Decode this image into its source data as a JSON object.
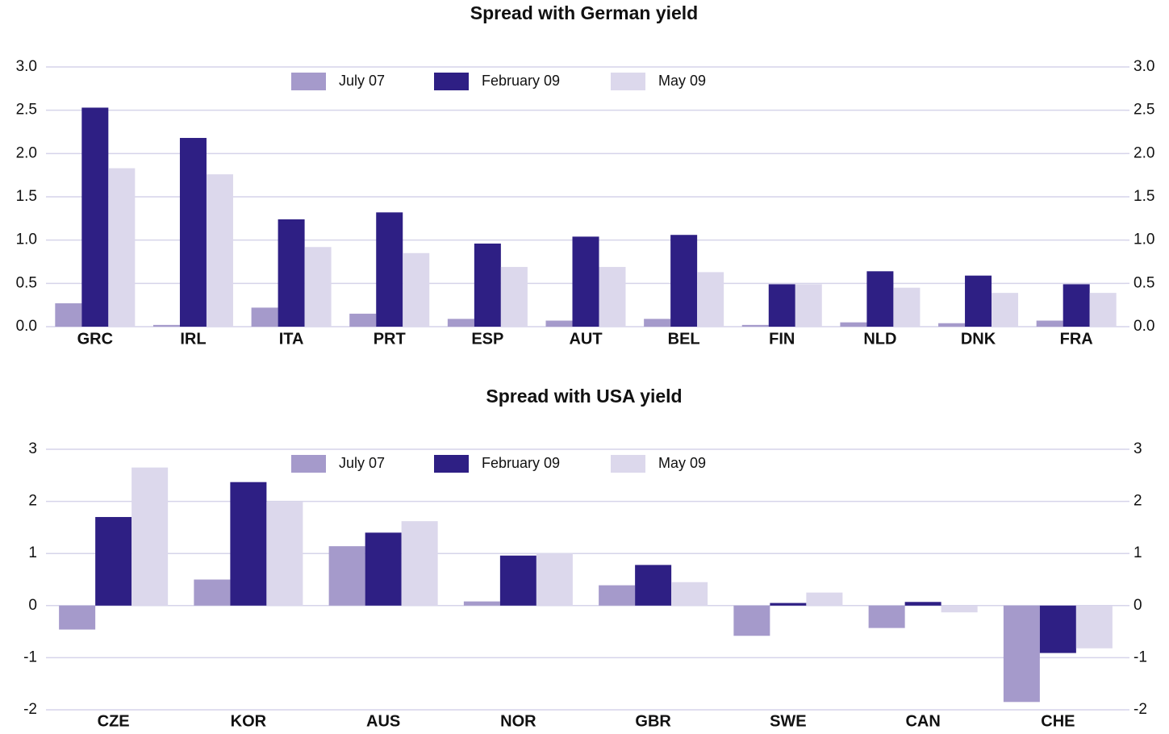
{
  "chart_data": [
    {
      "type": "bar",
      "title": "Spread with German yield",
      "categories": [
        "GRC",
        "IRL",
        "ITA",
        "PRT",
        "ESP",
        "AUT",
        "BEL",
        "FIN",
        "NLD",
        "DNK",
        "FRA"
      ],
      "series": [
        {
          "name": "July 07",
          "color": "#a59acb",
          "values": [
            0.27,
            0.02,
            0.22,
            0.15,
            0.09,
            0.07,
            0.09,
            0.02,
            0.05,
            0.04,
            0.07
          ]
        },
        {
          "name": "February 09",
          "color": "#2e1f84",
          "values": [
            2.53,
            2.18,
            1.24,
            1.32,
            0.96,
            1.04,
            1.06,
            0.49,
            0.64,
            0.59,
            0.49
          ]
        },
        {
          "name": "May 09",
          "color": "#dcd8ec",
          "values": [
            1.83,
            1.76,
            0.92,
            0.85,
            0.69,
            0.69,
            0.63,
            0.49,
            0.45,
            0.39,
            0.39
          ]
        }
      ],
      "ylim": [
        0,
        3
      ],
      "yticks": [
        {
          "value": 0,
          "label": "0.0"
        },
        0.5,
        {
          "value": 1,
          "label": "1.0"
        },
        1.5,
        {
          "value": 2,
          "label": "2.0"
        },
        2.5,
        {
          "value": 3,
          "label": "3.0"
        }
      ],
      "y2lim": [
        0,
        3
      ],
      "y2ticks": [
        {
          "value": 0,
          "label": "0.0"
        },
        0.5,
        {
          "value": 1,
          "label": "1.0"
        },
        1.5,
        {
          "value": 2,
          "label": "2.0"
        },
        2.5,
        {
          "value": 3,
          "label": "3.0"
        }
      ],
      "grid": true,
      "legend": "top"
    },
    {
      "type": "bar",
      "title": "Spread with USA yield",
      "categories": [
        "CZE",
        "KOR",
        "AUS",
        "NOR",
        "GBR",
        "SWE",
        "CAN",
        "CHE"
      ],
      "series": [
        {
          "name": "July 07",
          "color": "#a59acb",
          "values": [
            -0.46,
            0.5,
            1.14,
            0.08,
            0.39,
            -0.58,
            -0.43,
            -1.85
          ]
        },
        {
          "name": "February 09",
          "color": "#2e1f84",
          "values": [
            1.7,
            2.37,
            1.4,
            0.96,
            0.78,
            0.05,
            0.07,
            -0.91
          ]
        },
        {
          "name": "May 09",
          "color": "#dcd8ec",
          "values": [
            2.65,
            1.99,
            1.62,
            1.0,
            0.45,
            0.25,
            -0.13,
            -0.82
          ]
        }
      ],
      "ylim": [
        -2,
        3
      ],
      "yticks": [
        -2,
        -1,
        0,
        1,
        2,
        3
      ],
      "y2lim": [
        -2,
        3
      ],
      "y2ticks": [
        -2,
        -1,
        0,
        1,
        2,
        3
      ],
      "grid": true,
      "legend": "top"
    }
  ]
}
